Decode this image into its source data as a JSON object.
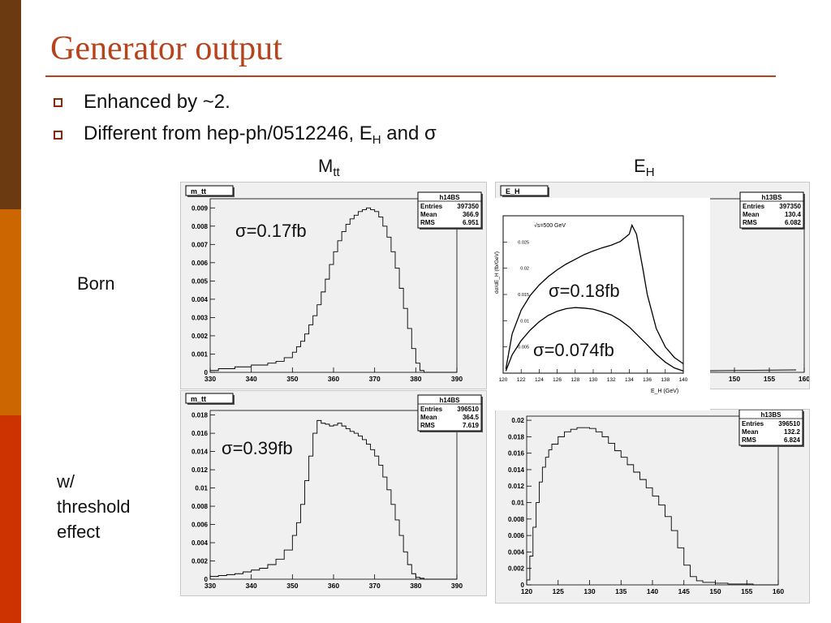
{
  "slide": {
    "title": "Generator output",
    "bullets": [
      "Enhanced by ~2.",
      "Different from hep-ph/0512246, E",
      "and σ"
    ],
    "bullet2_sub": "H",
    "col_mtt": "M",
    "col_mtt_sub": "tt",
    "col_eh": "E",
    "col_eh_sub": "H",
    "row_born": "Born",
    "row_threshold": [
      "w/",
      "threshold",
      "effect"
    ],
    "band_colors": [
      "#6b3a10",
      "#cc6600",
      "#cc3300"
    ]
  },
  "chart_data": [
    {
      "type": "histogram",
      "id": "mtt-born",
      "title": "m_tt",
      "stats": {
        "name": "h14BS",
        "Entries": "397350",
        "Mean": "366.9",
        "RMS": "6.951"
      },
      "xlim": [
        330,
        390
      ],
      "ylim": [
        0,
        0.0095
      ],
      "xticks": [
        330,
        340,
        350,
        360,
        370,
        380,
        390
      ],
      "yticks": [
        0,
        0.001,
        0.002,
        0.003,
        0.004,
        0.005,
        0.006,
        0.007,
        0.008,
        0.009
      ],
      "ytick_labels": [
        "0",
        "0.001",
        "0.002",
        "0.003",
        "0.004",
        "0.005",
        "0.006",
        "0.007",
        "0.008",
        "0.009"
      ],
      "annotation": "σ=0.17fb",
      "x": [
        330,
        332,
        334,
        336,
        338,
        340,
        342,
        344,
        346,
        348,
        350,
        351,
        352,
        353,
        354,
        355,
        356,
        357,
        358,
        359,
        360,
        361,
        362,
        363,
        364,
        365,
        366,
        367,
        368,
        369,
        370,
        371,
        372,
        373,
        374,
        375,
        376,
        377,
        378,
        379,
        380,
        381,
        382,
        383,
        384,
        386,
        388,
        390
      ],
      "y": [
        0.0001,
        0.0002,
        0.0002,
        0.0003,
        0.0003,
        0.0004,
        0.0004,
        0.0005,
        0.0006,
        0.0008,
        0.0011,
        0.0014,
        0.0017,
        0.0021,
        0.0026,
        0.0031,
        0.0037,
        0.0044,
        0.0051,
        0.0059,
        0.0066,
        0.0072,
        0.0077,
        0.0081,
        0.0084,
        0.0086,
        0.0088,
        0.0089,
        0.009,
        0.0089,
        0.0088,
        0.0085,
        0.008,
        0.0074,
        0.0066,
        0.0057,
        0.0046,
        0.0035,
        0.0024,
        0.0013,
        0.0005,
        0.0001,
        0,
        0,
        0,
        0,
        0,
        0
      ]
    },
    {
      "type": "histogram",
      "id": "eh-born",
      "title": "E_H",
      "stats": {
        "name": "h13BS",
        "Entries": "397350",
        "Mean": "130.4",
        "RMS": "6.082"
      },
      "xlim": [
        120,
        160
      ],
      "xticks": [
        150,
        155,
        160
      ]
    },
    {
      "type": "line",
      "id": "eh-reference-inset",
      "annotation_box": "√s=500 GeV",
      "xlabel": "E_H (GeV)",
      "ylabel": "dσ/dE_H (fb/GeV)",
      "xlim": [
        120,
        140
      ],
      "ylim": [
        0,
        0.03
      ],
      "xticks": [
        120,
        122,
        124,
        126,
        128,
        130,
        132,
        134,
        136,
        138,
        140
      ],
      "yticks": [
        0.005,
        0.01,
        0.015,
        0.02,
        0.025
      ],
      "ytick_labels": [
        "0.005",
        "0.01",
        "0.015",
        "0.02",
        "0.025"
      ],
      "annotations": [
        "σ=0.18fb",
        "σ=0.074fb"
      ],
      "series": [
        {
          "x": [
            120.3,
            121,
            122,
            123,
            124,
            125,
            126,
            127,
            128,
            129,
            130,
            131,
            132,
            133,
            134,
            134.3,
            134.8,
            135.5,
            136,
            137,
            138,
            139,
            140
          ],
          "y": [
            0.0008,
            0.0075,
            0.012,
            0.0148,
            0.0168,
            0.0184,
            0.0197,
            0.0208,
            0.0217,
            0.0226,
            0.0233,
            0.0239,
            0.0244,
            0.0251,
            0.0265,
            0.0282,
            0.0265,
            0.02,
            0.015,
            0.0085,
            0.005,
            0.003,
            0.0018
          ]
        },
        {
          "x": [
            120.3,
            121,
            122,
            123,
            124,
            125,
            126,
            127,
            128,
            129,
            130,
            131,
            132,
            133,
            134,
            135,
            136,
            137,
            138,
            139,
            140
          ],
          "y": [
            0.0004,
            0.0035,
            0.0062,
            0.0082,
            0.0098,
            0.011,
            0.0118,
            0.0123,
            0.0125,
            0.0124,
            0.0122,
            0.0117,
            0.0111,
            0.0101,
            0.0088,
            0.0071,
            0.0054,
            0.0036,
            0.0021,
            0.001,
            0.0004
          ]
        }
      ]
    },
    {
      "type": "histogram",
      "id": "mtt-threshold",
      "title": "m_tt",
      "stats": {
        "name": "h14BS",
        "Entries": "396510",
        "Mean": "364.5",
        "RMS": "7.619"
      },
      "xlim": [
        330,
        390
      ],
      "ylim": [
        0,
        0.0185
      ],
      "xticks": [
        330,
        340,
        350,
        360,
        370,
        380,
        390
      ],
      "yticks": [
        0,
        0.002,
        0.004,
        0.006,
        0.008,
        0.01,
        0.012,
        0.014,
        0.016,
        0.018
      ],
      "ytick_labels": [
        "0",
        "0.002",
        "0.004",
        "0.006",
        "0.008",
        "0.01",
        "0.012",
        "0.014",
        "0.016",
        "0.018"
      ],
      "annotation": "σ=0.39fb",
      "x": [
        330,
        332,
        334,
        336,
        338,
        340,
        342,
        344,
        346,
        348,
        350,
        351,
        352,
        353,
        354,
        355,
        356,
        357,
        358,
        359,
        360,
        361,
        362,
        363,
        364,
        365,
        366,
        367,
        368,
        369,
        370,
        371,
        372,
        373,
        374,
        375,
        376,
        377,
        378,
        379,
        380,
        381,
        382,
        384,
        386,
        388,
        390
      ],
      "y": [
        0.0003,
        0.0004,
        0.0005,
        0.0006,
        0.0008,
        0.001,
        0.0012,
        0.0016,
        0.0022,
        0.0032,
        0.0048,
        0.0062,
        0.0082,
        0.0108,
        0.0135,
        0.016,
        0.0174,
        0.0171,
        0.017,
        0.0168,
        0.0169,
        0.0171,
        0.0168,
        0.0165,
        0.0162,
        0.016,
        0.0157,
        0.0153,
        0.0148,
        0.0142,
        0.0135,
        0.0125,
        0.0112,
        0.0098,
        0.0082,
        0.0065,
        0.0048,
        0.003,
        0.0016,
        0.0006,
        0.0002,
        0.0001,
        0,
        0,
        0,
        0,
        0
      ]
    },
    {
      "type": "histogram",
      "id": "eh-threshold",
      "stats": {
        "name": "h13BS",
        "Entries": "396510",
        "Mean": "132.2",
        "RMS": "6.824"
      },
      "xlim": [
        120,
        160
      ],
      "ylim": [
        0,
        0.0205
      ],
      "xticks": [
        120,
        125,
        130,
        135,
        140,
        145,
        150,
        155,
        160
      ],
      "yticks": [
        0,
        0.002,
        0.004,
        0.006,
        0.008,
        0.01,
        0.012,
        0.014,
        0.016,
        0.018,
        0.02
      ],
      "ytick_labels": [
        "0",
        "0.002",
        "0.004",
        "0.006",
        "0.008",
        "0.01",
        "0.012",
        "0.014",
        "0.016",
        "0.018",
        "0.02"
      ],
      "x": [
        120,
        120.5,
        121,
        121.5,
        122,
        122.5,
        123,
        123.5,
        124,
        125,
        126,
        127,
        128,
        129,
        130,
        131,
        132,
        133,
        134,
        135,
        136,
        137,
        138,
        139,
        140,
        141,
        142,
        143,
        144,
        145,
        146,
        147,
        148,
        150,
        152,
        154,
        156,
        158,
        160
      ],
      "y": [
        0.0006,
        0.0035,
        0.007,
        0.01,
        0.0125,
        0.0143,
        0.0155,
        0.0164,
        0.0171,
        0.018,
        0.0186,
        0.0189,
        0.0191,
        0.0191,
        0.019,
        0.0186,
        0.018,
        0.0172,
        0.0163,
        0.0155,
        0.0146,
        0.0137,
        0.0128,
        0.0118,
        0.0108,
        0.0097,
        0.0083,
        0.0066,
        0.0045,
        0.0024,
        0.001,
        0.0005,
        0.0003,
        0.0002,
        0.0001,
        0.0001,
        0,
        0,
        0
      ]
    }
  ]
}
